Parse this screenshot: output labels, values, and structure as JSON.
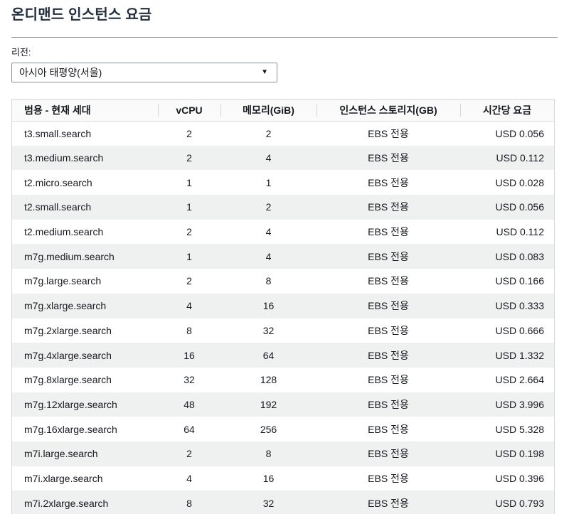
{
  "page": {
    "title": "온디맨드 인스턴스 요금"
  },
  "region_selector": {
    "label": "리전:",
    "selected_value": "아시아 태평양(서울)",
    "dropdown_icon": "chevron-down-triangle",
    "dropdown_glyph": "▼"
  },
  "table": {
    "columns": [
      "범용 - 현재 세대",
      "vCPU",
      "메모리(GiB)",
      "인스턴스 스토리지(GB)",
      "시간당 요금"
    ],
    "rows": [
      [
        "t3.small.search",
        "2",
        "2",
        "EBS 전용",
        "USD 0.056"
      ],
      [
        "t3.medium.search",
        "2",
        "4",
        "EBS 전용",
        "USD 0.112"
      ],
      [
        "t2.micro.search",
        "1",
        "1",
        "EBS 전용",
        "USD 0.028"
      ],
      [
        "t2.small.search",
        "1",
        "2",
        "EBS 전용",
        "USD 0.056"
      ],
      [
        "t2.medium.search",
        "2",
        "4",
        "EBS 전용",
        "USD 0.112"
      ],
      [
        "m7g.medium.search",
        "1",
        "4",
        "EBS 전용",
        "USD 0.083"
      ],
      [
        "m7g.large.search",
        "2",
        "8",
        "EBS 전용",
        "USD 0.166"
      ],
      [
        "m7g.xlarge.search",
        "4",
        "16",
        "EBS 전용",
        "USD 0.333"
      ],
      [
        "m7g.2xlarge.search",
        "8",
        "32",
        "EBS 전용",
        "USD 0.666"
      ],
      [
        "m7g.4xlarge.search",
        "16",
        "64",
        "EBS 전용",
        "USD 1.332"
      ],
      [
        "m7g.8xlarge.search",
        "32",
        "128",
        "EBS 전용",
        "USD 2.664"
      ],
      [
        "m7g.12xlarge.search",
        "48",
        "192",
        "EBS 전용",
        "USD 3.996"
      ],
      [
        "m7g.16xlarge.search",
        "64",
        "256",
        "EBS 전용",
        "USD 5.328"
      ],
      [
        "m7i.large.search",
        "2",
        "8",
        "EBS 전용",
        "USD 0.198"
      ],
      [
        "m7i.xlarge.search",
        "4",
        "16",
        "EBS 전용",
        "USD 0.396"
      ],
      [
        "m7i.2xlarge.search",
        "8",
        "32",
        "EBS 전용",
        "USD 0.793"
      ]
    ],
    "cell_names": [
      "instance-type-cell",
      "vcpu-cell",
      "memory-cell",
      "storage-cell",
      "price-cell"
    ]
  },
  "colors": {
    "title": "#232f3e",
    "text": "#16191f",
    "table_border": "#d6d6d6",
    "header_bg": "#fafafa",
    "stripe_bg": "#eff0f0",
    "divider": "#8f9294",
    "select_border": "#879196"
  }
}
